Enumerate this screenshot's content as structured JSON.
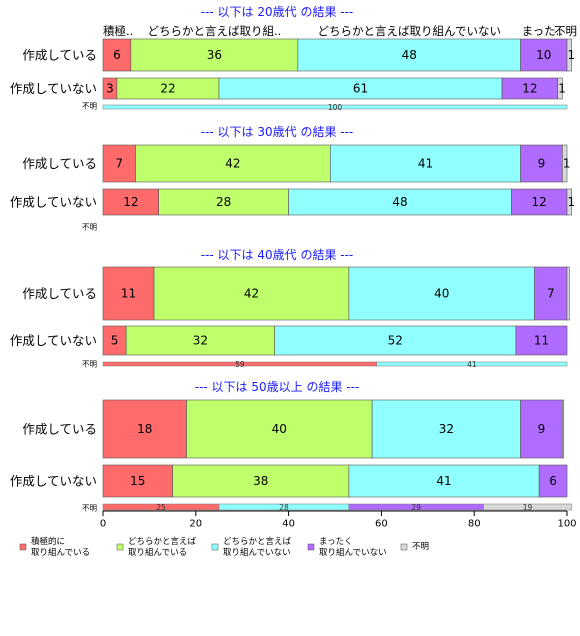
{
  "chart_data": {
    "type": "bar",
    "orientation": "horizontal",
    "stacked": true,
    "xlim": [
      0,
      100
    ],
    "xticks": [
      "0",
      "20",
      "40",
      "60",
      "80",
      "100"
    ],
    "legend_position": "bottom",
    "series": [
      {
        "name": "積極的に\n取り組んでいる",
        "color": "#ff6b6b"
      },
      {
        "name": "どちらかと言えば\n取り組んでいる",
        "color": "#bfff6b"
      },
      {
        "name": "どちらかと言えば\n取り組んでいない",
        "color": "#90ffff"
      },
      {
        "name": "まったく\n取り組んでいない",
        "color": "#b06bff"
      },
      {
        "name": "不明",
        "color": "#d9d9d9"
      }
    ],
    "panels": [
      {
        "title": "--- 以下は 20歳代 の結果 ---",
        "header_labels": [
          "積極..",
          "どちらかと言えば取り組..",
          "どちらかと言えば取り組んでいない",
          "まった..",
          "不明"
        ],
        "rows": [
          {
            "label": "作成している",
            "values": [
              6,
              36,
              48,
              10,
              1
            ],
            "data_labels": [
              "6",
              "36",
              "48",
              "10",
              "1"
            ]
          },
          {
            "label": "作成していない",
            "values": [
              3,
              22,
              61,
              12,
              1
            ],
            "data_labels": [
              "3",
              "22",
              "61",
              "12",
              "1"
            ]
          }
        ],
        "unknown": {
          "label": "不明",
          "values": [
            0,
            0,
            100,
            0,
            0
          ],
          "data_labels": [
            "",
            "",
            "100",
            "",
            ""
          ]
        }
      },
      {
        "title": "--- 以下は 30歳代 の結果 ---",
        "rows": [
          {
            "label": "作成している",
            "values": [
              7,
              42,
              41,
              9,
              1
            ],
            "data_labels": [
              "7",
              "42",
              "41",
              "9",
              "1"
            ]
          },
          {
            "label": "作成していない",
            "values": [
              12,
              28,
              48,
              12,
              1
            ],
            "data_labels": [
              "12",
              "28",
              "48",
              "12",
              "1"
            ]
          }
        ],
        "unknown": {
          "label": "不明",
          "values": [
            0,
            0,
            0,
            0,
            0
          ],
          "data_labels": [
            "",
            "",
            "",
            "",
            ""
          ]
        }
      },
      {
        "title": "--- 以下は 40歳代 の結果 ---",
        "rows": [
          {
            "label": "作成している",
            "values": [
              11,
              42,
              40,
              7,
              0.5
            ],
            "data_labels": [
              "11",
              "42",
              "40",
              "7",
              ""
            ]
          },
          {
            "label": "作成していない",
            "values": [
              5,
              32,
              52,
              11,
              0
            ],
            "data_labels": [
              "5",
              "32",
              "52",
              "11",
              ""
            ]
          }
        ],
        "unknown": {
          "label": "不明",
          "values": [
            59,
            0,
            41,
            0,
            0
          ],
          "data_labels": [
            "59",
            "",
            "41",
            "",
            ""
          ]
        }
      },
      {
        "title": "--- 以下は 50歳以上 の結果 ---",
        "rows": [
          {
            "label": "作成している",
            "values": [
              18,
              40,
              32,
              9,
              0.3
            ],
            "data_labels": [
              "18",
              "40",
              "32",
              "9",
              ""
            ]
          },
          {
            "label": "作成していない",
            "values": [
              15,
              38,
              41,
              6,
              0
            ],
            "data_labels": [
              "15",
              "38",
              "41",
              "6",
              ""
            ]
          }
        ],
        "unknown": {
          "label": "不明",
          "values": [
            25,
            0,
            28,
            29,
            19
          ],
          "data_labels": [
            "25",
            "",
            "28",
            "29",
            "19"
          ]
        }
      }
    ]
  }
}
